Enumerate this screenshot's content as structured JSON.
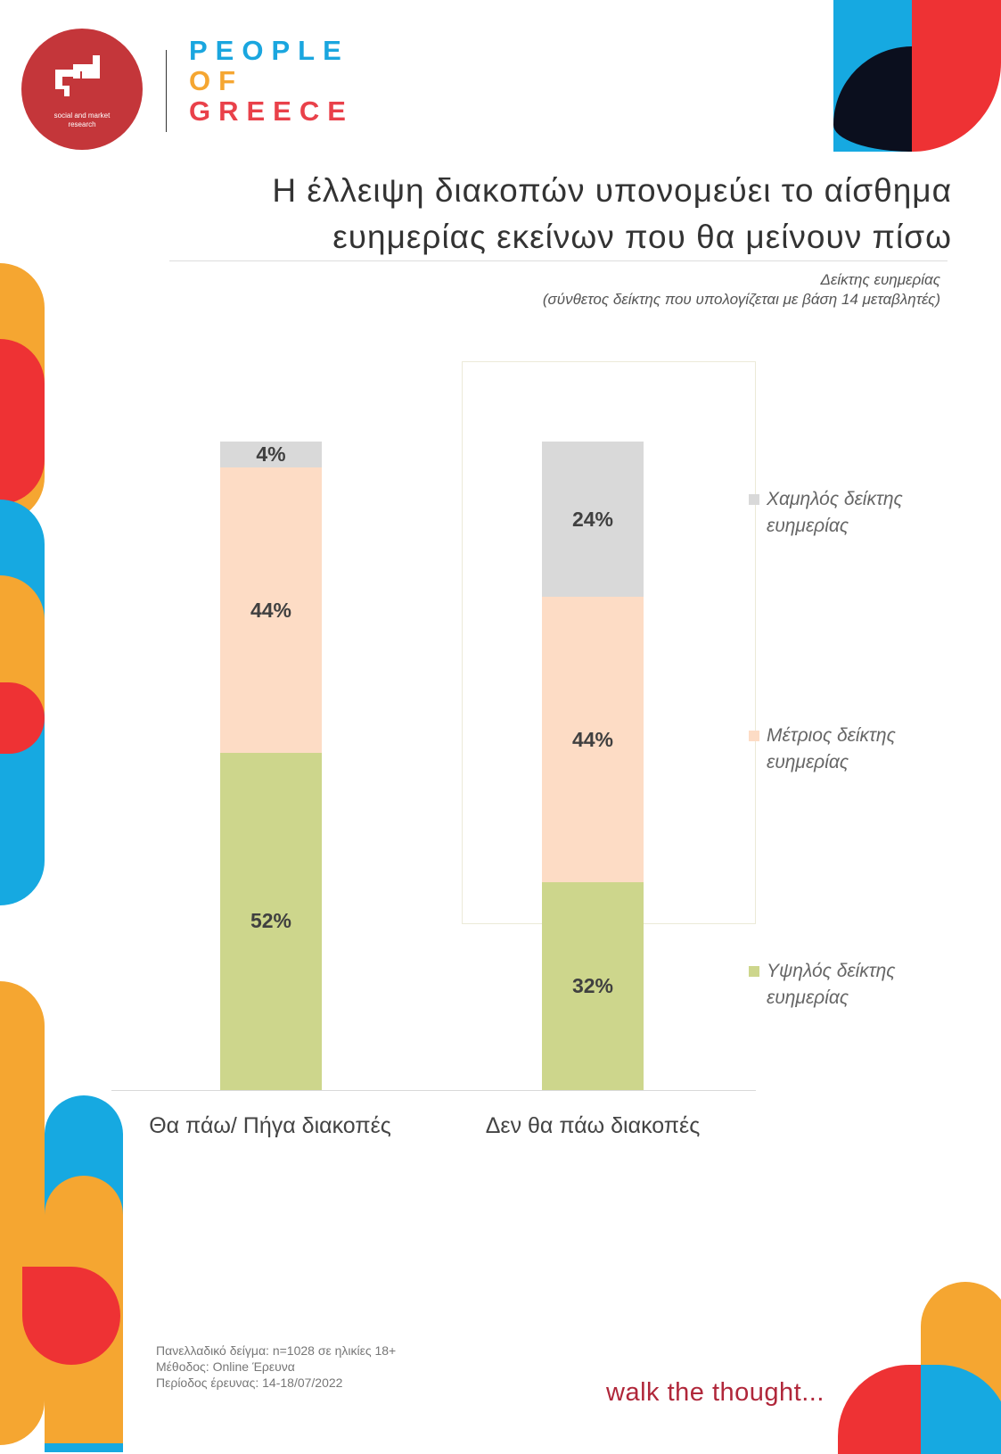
{
  "header": {
    "logo_text": "social and market research",
    "brand_lines": [
      "PEOPLE",
      "OF",
      "GREECE"
    ]
  },
  "chart_data": {
    "type": "bar",
    "stacked": true,
    "title": "Η έλλειψη διακοπών υπονομεύει το αίσθημα ευημερίας εκείνων που θα μείνουν πίσω",
    "title_lines": [
      "Η έλλειψη διακοπών υπονομεύει το αίσθημα",
      "ευημερίας εκείνων που θα μείνουν πίσω"
    ],
    "subtitle_lines": [
      "Δείκτης ευημερίας",
      "(σύνθετος δείκτης που υπολογίζεται με βάση 14 μεταβλητές)"
    ],
    "categories": [
      "Θα πάω/ Πήγα διακοπές",
      "Δεν θα πάω διακοπές"
    ],
    "series": [
      {
        "name": "Υψηλός δείκτης ευημερίας",
        "legend_lines": [
          "Υψηλός δείκτης",
          "ευημερίας"
        ],
        "color": "#cdd68c",
        "values": [
          52,
          32
        ],
        "labels": [
          "52%",
          "32%"
        ]
      },
      {
        "name": "Μέτριος δείκτης ευημερίας",
        "legend_lines": [
          "Μέτριος δείκτης",
          "ευημερίας"
        ],
        "color": "#fddcc5",
        "values": [
          44,
          44
        ],
        "labels": [
          "44%",
          "44%"
        ]
      },
      {
        "name": "Χαμηλός δείκτης ευημερίας",
        "legend_lines": [
          "Χαμηλός δείκτης",
          "ευημερίας"
        ],
        "color": "#d9d9d9",
        "values": [
          4,
          24
        ],
        "labels": [
          "4%",
          "24%"
        ]
      }
    ],
    "ylim": [
      0,
      100
    ],
    "legend_position": "right"
  },
  "footer": {
    "notes": [
      "Πανελλαδικό δείγμα: n=1028 σε ηλικίες 18+",
      "Μέθοδος: Online Έρευνα",
      "Περίοδος έρευνας: 14-18/07/2022"
    ],
    "slogan": "walk the thought..."
  }
}
